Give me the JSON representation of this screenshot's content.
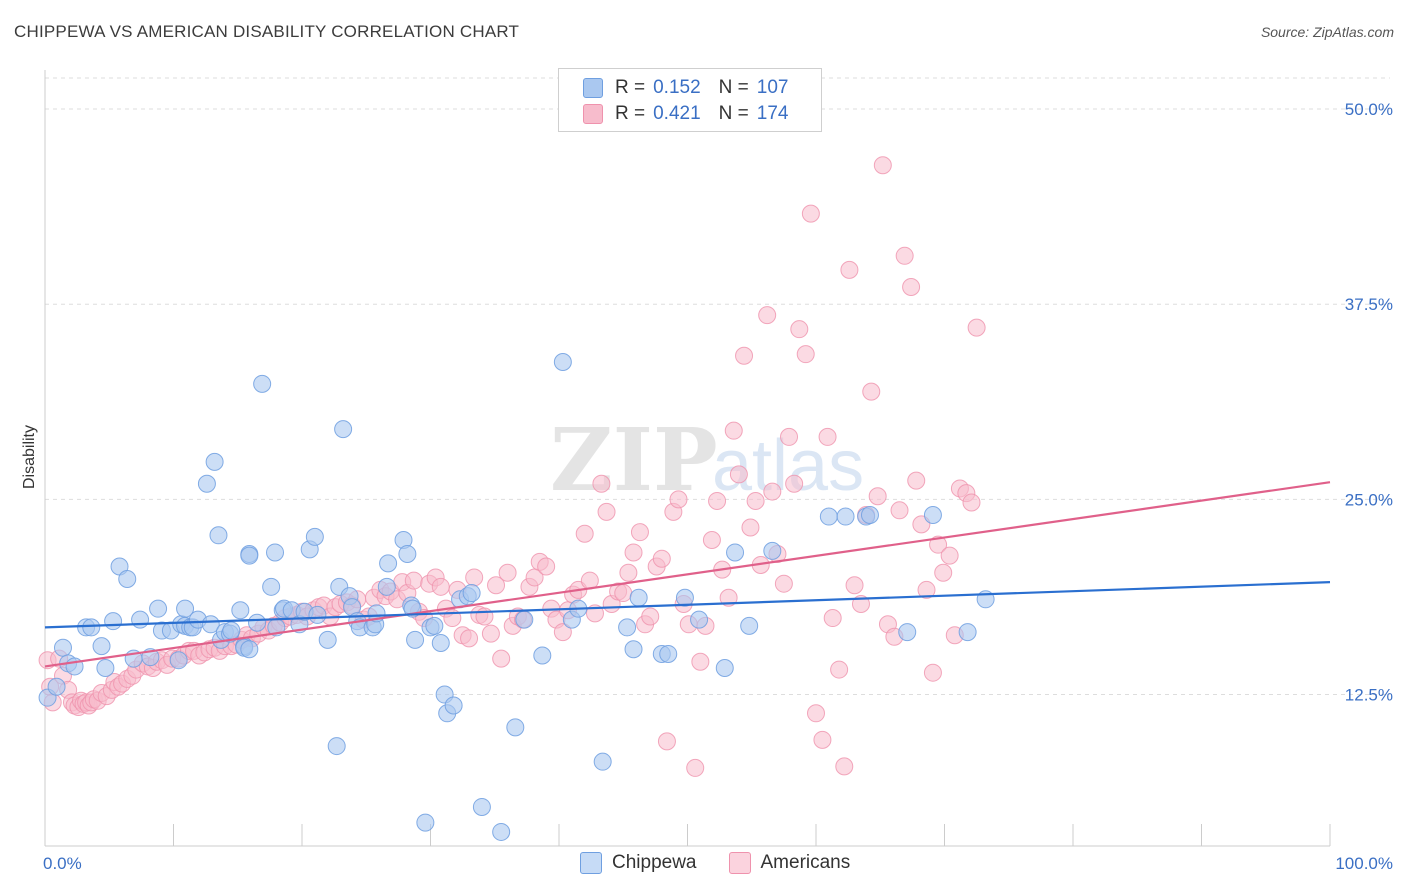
{
  "title": "CHIPPEWA VS AMERICAN DISABILITY CORRELATION CHART",
  "source": "Source: ZipAtlas.com",
  "watermark": {
    "zip": "ZIP",
    "atlas": "atlas"
  },
  "legend": {
    "rows": [
      {
        "r_label": "R =",
        "r_value": "0.152",
        "n_label": "N =",
        "n_value": "107"
      },
      {
        "r_label": "R =",
        "r_value": "0.421",
        "n_label": "N =",
        "n_value": "174"
      }
    ]
  },
  "colors": {
    "chippewa_fill": "#aac8f0",
    "chippewa_stroke": "#6f9fe0",
    "chippewa_line": "#2a6fd0",
    "americans_fill": "#f7bccc",
    "americans_stroke": "#ef92ad",
    "americans_line": "#e0608a",
    "tick_label": "#3a6fc4",
    "grid": "#dddddd"
  },
  "chart_data": {
    "type": "scatter",
    "title": "CHIPPEWA VS AMERICAN DISABILITY CORRELATION CHART",
    "xlabel": "",
    "ylabel": "Disability",
    "xlim": [
      0,
      100
    ],
    "ylim": [
      2.8,
      52.5
    ],
    "x_tick_labels": [
      "0.0%",
      "100.0%"
    ],
    "y_ticks": [
      12.5,
      25.0,
      37.5,
      50.0
    ],
    "y_tick_labels": [
      "12.5%",
      "25.0%",
      "37.5%",
      "50.0%"
    ],
    "grid": "horizontal dashed",
    "legend_position": "top-center and bottom",
    "series": [
      {
        "name": "Chippewa",
        "r": 0.152,
        "n": 107,
        "trend": {
          "x": [
            0,
            100
          ],
          "y": [
            16.8,
            19.7
          ]
        },
        "points": [
          [
            0.2,
            12.3
          ],
          [
            0.9,
            13.0
          ],
          [
            1.4,
            15.5
          ],
          [
            1.8,
            14.5
          ],
          [
            2.3,
            14.3
          ],
          [
            3.2,
            16.8
          ],
          [
            3.6,
            16.8
          ],
          [
            4.4,
            15.6
          ],
          [
            4.7,
            14.2
          ],
          [
            5.3,
            17.2
          ],
          [
            5.8,
            20.7
          ],
          [
            6.4,
            19.9
          ],
          [
            6.9,
            14.8
          ],
          [
            7.4,
            17.3
          ],
          [
            8.2,
            14.9
          ],
          [
            8.8,
            18.0
          ],
          [
            9.1,
            16.6
          ],
          [
            9.8,
            16.6
          ],
          [
            10.4,
            14.7
          ],
          [
            10.6,
            17.0
          ],
          [
            10.9,
            16.9
          ],
          [
            10.9,
            18.0
          ],
          [
            11.3,
            16.8
          ],
          [
            11.5,
            16.8
          ],
          [
            11.9,
            17.3
          ],
          [
            12.6,
            26.0
          ],
          [
            12.9,
            17.0
          ],
          [
            13.2,
            27.4
          ],
          [
            13.5,
            22.7
          ],
          [
            13.7,
            16.0
          ],
          [
            14.0,
            16.5
          ],
          [
            14.4,
            16.4
          ],
          [
            14.5,
            16.6
          ],
          [
            15.2,
            17.9
          ],
          [
            15.5,
            15.6
          ],
          [
            15.5,
            15.5
          ],
          [
            15.9,
            15.4
          ],
          [
            15.9,
            21.5
          ],
          [
            15.9,
            21.4
          ],
          [
            16.5,
            17.1
          ],
          [
            16.9,
            32.4
          ],
          [
            17.6,
            19.4
          ],
          [
            17.9,
            21.6
          ],
          [
            18.0,
            16.8
          ],
          [
            18.5,
            17.9
          ],
          [
            18.6,
            18.0
          ],
          [
            19.2,
            17.9
          ],
          [
            19.8,
            17.0
          ],
          [
            20.2,
            17.8
          ],
          [
            20.6,
            21.8
          ],
          [
            21.0,
            22.6
          ],
          [
            21.2,
            17.6
          ],
          [
            22.0,
            16.0
          ],
          [
            22.7,
            9.2
          ],
          [
            22.9,
            19.4
          ],
          [
            23.2,
            29.5
          ],
          [
            23.7,
            18.8
          ],
          [
            23.9,
            18.1
          ],
          [
            24.3,
            17.2
          ],
          [
            24.5,
            16.8
          ],
          [
            25.5,
            16.8
          ],
          [
            25.7,
            17.0
          ],
          [
            25.8,
            17.7
          ],
          [
            26.6,
            19.4
          ],
          [
            26.7,
            20.9
          ],
          [
            27.9,
            22.4
          ],
          [
            28.2,
            21.5
          ],
          [
            28.5,
            18.2
          ],
          [
            28.6,
            18.0
          ],
          [
            28.8,
            16.0
          ],
          [
            29.6,
            4.3
          ],
          [
            30.0,
            16.8
          ],
          [
            30.3,
            16.9
          ],
          [
            30.8,
            15.8
          ],
          [
            31.1,
            12.5
          ],
          [
            31.3,
            11.3
          ],
          [
            31.8,
            11.8
          ],
          [
            32.3,
            18.6
          ],
          [
            32.9,
            18.8
          ],
          [
            33.2,
            19.0
          ],
          [
            34.0,
            5.3
          ],
          [
            35.5,
            3.7
          ],
          [
            36.6,
            10.4
          ],
          [
            37.3,
            17.3
          ],
          [
            38.7,
            15.0
          ],
          [
            40.3,
            33.8
          ],
          [
            41.0,
            17.3
          ],
          [
            41.5,
            18.0
          ],
          [
            43.4,
            8.2
          ],
          [
            45.3,
            16.8
          ],
          [
            45.8,
            15.4
          ],
          [
            46.2,
            18.7
          ],
          [
            48.0,
            15.1
          ],
          [
            48.5,
            15.1
          ],
          [
            49.8,
            18.7
          ],
          [
            50.9,
            17.3
          ],
          [
            52.9,
            14.2
          ],
          [
            53.7,
            21.6
          ],
          [
            54.8,
            16.9
          ],
          [
            56.6,
            21.7
          ],
          [
            61.0,
            23.9
          ],
          [
            62.3,
            23.9
          ],
          [
            63.9,
            23.9
          ],
          [
            64.2,
            24.0
          ],
          [
            67.1,
            16.5
          ],
          [
            69.1,
            24.0
          ],
          [
            71.8,
            16.5
          ],
          [
            73.2,
            18.6
          ]
        ]
      },
      {
        "name": "Americans",
        "r": 0.421,
        "n": 174,
        "trend": {
          "x": [
            0,
            100
          ],
          "y": [
            14.3,
            26.1
          ]
        },
        "points": [
          [
            0.2,
            14.7
          ],
          [
            0.4,
            13.0
          ],
          [
            0.6,
            12.0
          ],
          [
            1.1,
            14.8
          ],
          [
            1.4,
            13.7
          ],
          [
            1.8,
            12.8
          ],
          [
            2.1,
            12.0
          ],
          [
            2.3,
            11.8
          ],
          [
            2.6,
            11.7
          ],
          [
            2.8,
            12.1
          ],
          [
            3.0,
            11.9
          ],
          [
            3.2,
            12.0
          ],
          [
            3.4,
            11.8
          ],
          [
            3.6,
            12.0
          ],
          [
            3.8,
            12.2
          ],
          [
            4.1,
            12.1
          ],
          [
            4.4,
            12.6
          ],
          [
            4.8,
            12.4
          ],
          [
            5.2,
            12.8
          ],
          [
            5.4,
            13.3
          ],
          [
            5.7,
            13.0
          ],
          [
            6.0,
            13.2
          ],
          [
            6.4,
            13.5
          ],
          [
            6.8,
            13.7
          ],
          [
            7.1,
            14.1
          ],
          [
            7.6,
            14.5
          ],
          [
            8.0,
            14.3
          ],
          [
            8.4,
            14.2
          ],
          [
            8.7,
            14.6
          ],
          [
            9.1,
            14.7
          ],
          [
            9.5,
            14.4
          ],
          [
            9.9,
            14.8
          ],
          [
            10.4,
            14.8
          ],
          [
            10.8,
            15.0
          ],
          [
            11.2,
            15.3
          ],
          [
            11.6,
            15.3
          ],
          [
            12.0,
            15.0
          ],
          [
            12.4,
            15.2
          ],
          [
            12.8,
            15.4
          ],
          [
            13.2,
            15.5
          ],
          [
            13.6,
            15.3
          ],
          [
            14.0,
            15.6
          ],
          [
            14.5,
            15.6
          ],
          [
            14.9,
            15.7
          ],
          [
            15.3,
            16.0
          ],
          [
            15.7,
            16.3
          ],
          [
            16.1,
            16.1
          ],
          [
            16.6,
            16.4
          ],
          [
            17.0,
            16.8
          ],
          [
            17.4,
            16.6
          ],
          [
            17.8,
            16.9
          ],
          [
            18.3,
            17.1
          ],
          [
            18.7,
            17.4
          ],
          [
            19.1,
            17.5
          ],
          [
            19.6,
            17.6
          ],
          [
            20.0,
            17.8
          ],
          [
            20.4,
            17.5
          ],
          [
            20.9,
            17.9
          ],
          [
            21.3,
            18.1
          ],
          [
            21.7,
            18.2
          ],
          [
            22.2,
            17.5
          ],
          [
            22.6,
            18.1
          ],
          [
            23.0,
            18.3
          ],
          [
            23.5,
            18.4
          ],
          [
            23.9,
            18.2
          ],
          [
            24.3,
            18.6
          ],
          [
            24.8,
            17.3
          ],
          [
            25.2,
            17.5
          ],
          [
            25.6,
            18.7
          ],
          [
            26.1,
            19.2
          ],
          [
            26.5,
            18.8
          ],
          [
            26.9,
            19.1
          ],
          [
            27.4,
            18.6
          ],
          [
            27.8,
            19.7
          ],
          [
            28.2,
            19.0
          ],
          [
            28.7,
            19.8
          ],
          [
            29.1,
            17.8
          ],
          [
            29.5,
            17.4
          ],
          [
            29.9,
            19.6
          ],
          [
            30.4,
            20.0
          ],
          [
            30.8,
            19.4
          ],
          [
            31.2,
            18.0
          ],
          [
            31.7,
            17.4
          ],
          [
            32.1,
            19.2
          ],
          [
            32.5,
            16.3
          ],
          [
            33.0,
            16.1
          ],
          [
            33.4,
            20.0
          ],
          [
            33.8,
            17.6
          ],
          [
            34.2,
            17.5
          ],
          [
            34.7,
            16.4
          ],
          [
            35.1,
            19.5
          ],
          [
            35.5,
            14.8
          ],
          [
            36.0,
            20.3
          ],
          [
            36.4,
            16.9
          ],
          [
            36.8,
            17.5
          ],
          [
            37.2,
            17.3
          ],
          [
            37.7,
            19.4
          ],
          [
            38.1,
            20.0
          ],
          [
            38.5,
            21.0
          ],
          [
            39.0,
            20.7
          ],
          [
            39.4,
            18.0
          ],
          [
            39.8,
            17.3
          ],
          [
            40.3,
            16.5
          ],
          [
            40.7,
            17.9
          ],
          [
            41.1,
            18.9
          ],
          [
            41.5,
            19.2
          ],
          [
            42.0,
            22.8
          ],
          [
            42.4,
            19.8
          ],
          [
            42.8,
            17.7
          ],
          [
            43.3,
            26.0
          ],
          [
            43.7,
            24.2
          ],
          [
            44.1,
            18.3
          ],
          [
            44.6,
            19.1
          ],
          [
            45.0,
            19.0
          ],
          [
            45.4,
            20.3
          ],
          [
            45.8,
            21.6
          ],
          [
            46.3,
            22.9
          ],
          [
            46.7,
            17.0
          ],
          [
            47.1,
            17.5
          ],
          [
            47.6,
            20.7
          ],
          [
            48.0,
            21.2
          ],
          [
            48.4,
            9.5
          ],
          [
            48.9,
            24.2
          ],
          [
            49.3,
            25.0
          ],
          [
            49.7,
            18.3
          ],
          [
            50.1,
            17.0
          ],
          [
            50.6,
            7.8
          ],
          [
            51.0,
            14.6
          ],
          [
            51.4,
            16.9
          ],
          [
            51.9,
            22.4
          ],
          [
            52.3,
            24.9
          ],
          [
            52.7,
            20.5
          ],
          [
            53.2,
            18.7
          ],
          [
            53.6,
            29.4
          ],
          [
            54.0,
            26.6
          ],
          [
            54.4,
            34.2
          ],
          [
            54.9,
            23.2
          ],
          [
            55.3,
            24.9
          ],
          [
            55.7,
            20.8
          ],
          [
            56.2,
            36.8
          ],
          [
            56.6,
            25.5
          ],
          [
            57.0,
            21.5
          ],
          [
            57.5,
            19.6
          ],
          [
            57.9,
            29.0
          ],
          [
            58.3,
            26.0
          ],
          [
            58.7,
            35.9
          ],
          [
            59.2,
            34.3
          ],
          [
            59.6,
            43.3
          ],
          [
            60.0,
            11.3
          ],
          [
            60.5,
            9.6
          ],
          [
            60.9,
            29.0
          ],
          [
            61.3,
            17.4
          ],
          [
            61.8,
            14.1
          ],
          [
            62.2,
            7.9
          ],
          [
            62.6,
            39.7
          ],
          [
            63.0,
            19.5
          ],
          [
            63.5,
            18.3
          ],
          [
            63.9,
            24.0
          ],
          [
            64.3,
            31.9
          ],
          [
            64.8,
            25.2
          ],
          [
            65.2,
            46.4
          ],
          [
            65.6,
            17.0
          ],
          [
            66.1,
            16.2
          ],
          [
            66.5,
            24.3
          ],
          [
            66.9,
            40.6
          ],
          [
            67.4,
            38.6
          ],
          [
            67.8,
            26.2
          ],
          [
            68.2,
            23.4
          ],
          [
            68.6,
            19.2
          ],
          [
            69.1,
            13.9
          ],
          [
            69.5,
            22.1
          ],
          [
            69.9,
            20.3
          ],
          [
            70.4,
            21.4
          ],
          [
            70.8,
            16.3
          ],
          [
            71.2,
            25.7
          ],
          [
            71.7,
            25.4
          ],
          [
            72.1,
            24.8
          ],
          [
            72.5,
            36.0
          ]
        ]
      }
    ]
  },
  "bottom_legend": {
    "items": [
      "Chippewa",
      "Americans"
    ]
  }
}
